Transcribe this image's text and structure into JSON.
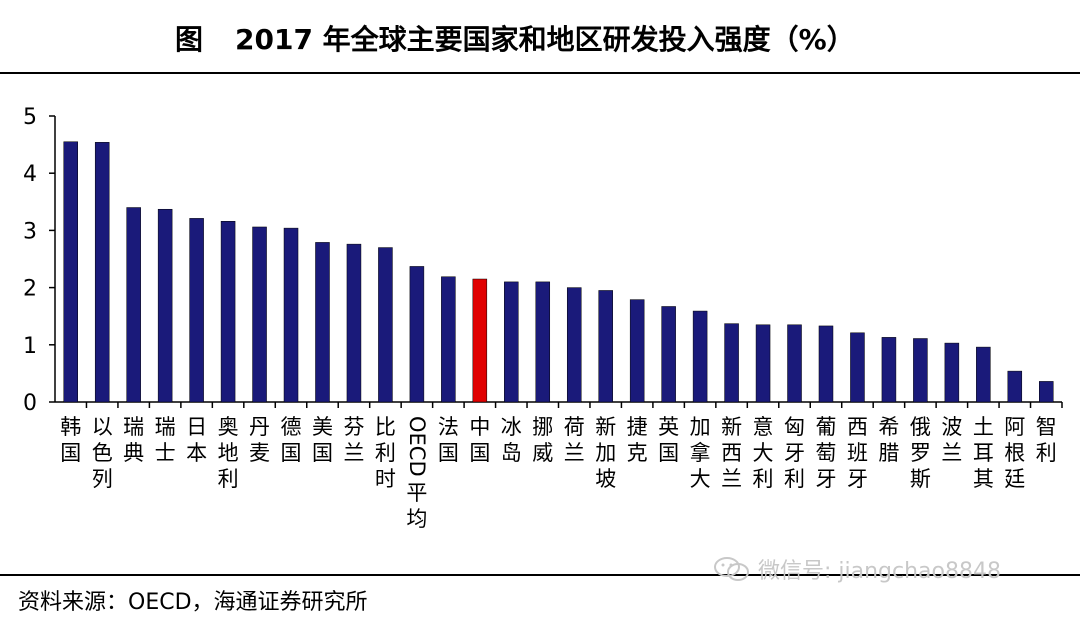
{
  "title": {
    "prefix": "图",
    "text": "2017 年全球主要国家和地区研发投入强度（%）"
  },
  "source": "资料来源：OECD，海通证券研究所",
  "watermark": "微信号: jiangchao8848",
  "colors": {
    "bar": "#1a1a7a",
    "highlight": "#e00000",
    "axis": "#000000"
  },
  "chart_data": {
    "type": "bar",
    "title": "2017 年全球主要国家和地区研发投入强度（%）",
    "xlabel": "",
    "ylabel": "",
    "ylim": [
      0,
      5
    ],
    "yticks": [
      0,
      1,
      2,
      3,
      4,
      5
    ],
    "grid": false,
    "highlight_category": "中国",
    "categories": [
      "韩国",
      "以色列",
      "瑞典",
      "瑞士",
      "日本",
      "奥地利",
      "丹麦",
      "德国",
      "美国",
      "芬兰",
      "比利时",
      "OECD平均",
      "法国",
      "中国",
      "冰岛",
      "挪威",
      "荷兰",
      "新加坡",
      "捷克",
      "英国",
      "加拿大",
      "新西兰",
      "意大利",
      "匈牙利",
      "葡萄牙",
      "西班牙",
      "希腊",
      "俄罗斯",
      "波兰",
      "土耳其",
      "阿根廷",
      "智利"
    ],
    "values": [
      4.55,
      4.54,
      3.4,
      3.37,
      3.21,
      3.16,
      3.06,
      3.04,
      2.79,
      2.76,
      2.7,
      2.37,
      2.19,
      2.15,
      2.1,
      2.1,
      2.0,
      1.95,
      1.79,
      1.67,
      1.59,
      1.37,
      1.35,
      1.35,
      1.33,
      1.21,
      1.13,
      1.11,
      1.03,
      0.96,
      0.54,
      0.36
    ]
  }
}
